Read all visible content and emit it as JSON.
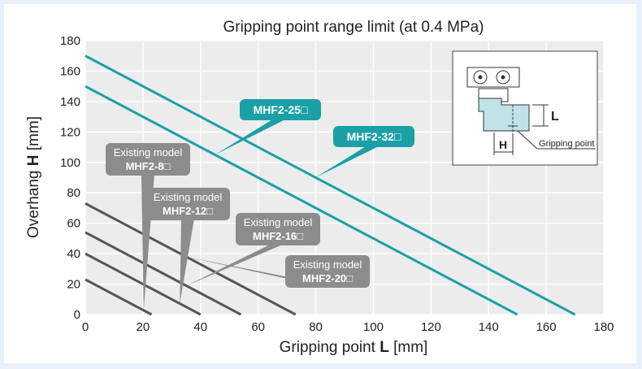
{
  "chart_data": {
    "type": "line",
    "title": "Gripping point range limit (at 0.4 MPa)",
    "xlabel": {
      "prefix": "Gripping point ",
      "symbol": "L",
      "suffix": " [mm]"
    },
    "ylabel": {
      "prefix": "Overhang ",
      "symbol": "H",
      "suffix": " [mm]"
    },
    "xlim": [
      0,
      180
    ],
    "ylim": [
      0,
      180
    ],
    "xticks": [
      0,
      20,
      40,
      60,
      80,
      100,
      120,
      140,
      160,
      180
    ],
    "yticks": [
      0,
      20,
      40,
      60,
      80,
      100,
      120,
      140,
      160,
      180
    ],
    "grid": true,
    "series": [
      {
        "name": "MHF2-32□",
        "color": "#1aa0a6",
        "x": [
          0,
          170
        ],
        "y": [
          170,
          0
        ]
      },
      {
        "name": "MHF2-25□",
        "color": "#1aa0a6",
        "x": [
          0,
          150
        ],
        "y": [
          150,
          0
        ]
      },
      {
        "name": "MHF2-20□",
        "color": "#555555",
        "x": [
          0,
          73
        ],
        "y": [
          73,
          0
        ]
      },
      {
        "name": "MHF2-16□",
        "color": "#555555",
        "x": [
          0,
          54
        ],
        "y": [
          54,
          0
        ]
      },
      {
        "name": "MHF2-12□",
        "color": "#555555",
        "x": [
          0,
          40
        ],
        "y": [
          40,
          0
        ]
      },
      {
        "name": "MHF2-8□",
        "color": "#555555",
        "x": [
          0,
          23
        ],
        "y": [
          23,
          0
        ]
      }
    ],
    "callouts": [
      {
        "series": "MHF2-25□",
        "line1": "",
        "line2": "MHF2-25□",
        "color": "#1aa0a6"
      },
      {
        "series": "MHF2-32□",
        "line1": "",
        "line2": "MHF2-32□",
        "color": "#1aa0a6"
      },
      {
        "series": "MHF2-8□",
        "line1": "Existing model",
        "line2": "MHF2-8□",
        "color": "#8c8c8c"
      },
      {
        "series": "MHF2-12□",
        "line1": "Existing model",
        "line2": "MHF2-12□",
        "color": "#8c8c8c"
      },
      {
        "series": "MHF2-16□",
        "line1": "Existing model",
        "line2": "MHF2-16□",
        "color": "#8c8c8c"
      },
      {
        "series": "MHF2-20□",
        "line1": "Existing model",
        "line2": "MHF2-20□",
        "color": "#8c8c8c"
      }
    ],
    "inset": {
      "label_L": "L",
      "label_H": "H",
      "caption": "Gripping point"
    }
  }
}
